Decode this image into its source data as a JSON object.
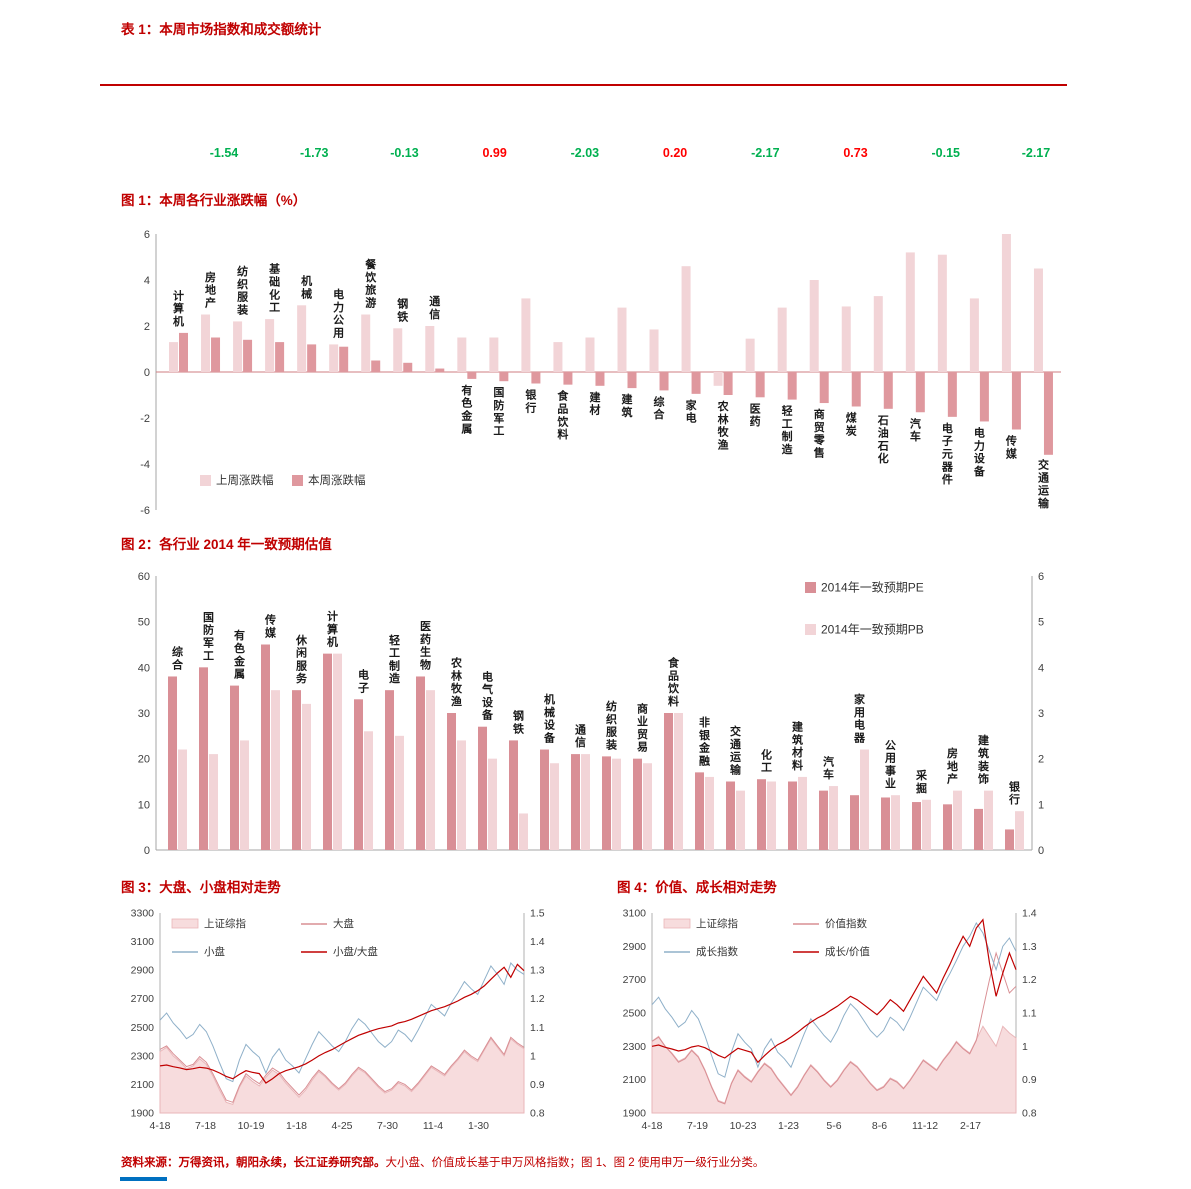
{
  "colors": {
    "title_red": "#c00000",
    "up_red": "#ff0000",
    "down_green": "#00b050",
    "axis_grey": "#a6a6a6",
    "zero_line": "#cf7d82"
  },
  "table1": {
    "title": "表 1：本周市场指数和成交额统计",
    "values": [
      {
        "text": "-1.54",
        "color": "green"
      },
      {
        "text": "-1.73",
        "color": "green"
      },
      {
        "text": "-0.13",
        "color": "green"
      },
      {
        "text": "0.99",
        "color": "red"
      },
      {
        "text": "-2.03",
        "color": "green"
      },
      {
        "text": "0.20",
        "color": "red"
      },
      {
        "text": "-2.17",
        "color": "green"
      },
      {
        "text": "0.73",
        "color": "red"
      },
      {
        "text": "-0.15",
        "color": "green"
      },
      {
        "text": "-2.17",
        "color": "green"
      }
    ]
  },
  "source_note": {
    "bold": "资料来源：万得资讯，朝阳永续，长江证券研究部。",
    "text": "大小盘、价值成长基于申万风格指数；图 1、图 2 使用申万一级行业分类。"
  },
  "chart_data": [
    {
      "id": "fig1",
      "type": "bar",
      "title": "图 1：本周各行业涨跌幅（%）",
      "ylim": [
        -6,
        6
      ],
      "yticks": [
        6,
        4,
        2,
        0,
        -2,
        -4,
        -6
      ],
      "grid": false,
      "legend_position": "bottom-left",
      "categories": [
        "计算机",
        "房地产",
        "纺织服装",
        "基础化工",
        "机械",
        "电力公用",
        "餐饮旅游",
        "钢铁",
        "通信",
        "有色金属",
        "国防军工",
        "银行",
        "食品饮料",
        "建材",
        "建筑",
        "综合",
        "家电",
        "农林牧渔",
        "医药",
        "轻工制造",
        "商贸零售",
        "煤炭",
        "石油石化",
        "汽车",
        "电子元器件",
        "电力设备",
        "传媒",
        "交通运输"
      ],
      "series": [
        {
          "name": "上周涨跌幅",
          "color": "#f2d4d7",
          "values": [
            1.3,
            2.5,
            2.2,
            2.3,
            2.9,
            1.2,
            2.5,
            1.9,
            2.0,
            1.5,
            1.5,
            3.2,
            1.3,
            1.5,
            2.8,
            1.85,
            4.6,
            -0.6,
            1.45,
            2.8,
            4.0,
            2.85,
            3.3,
            5.2,
            5.1,
            3.2,
            6.0,
            4.5
          ]
        },
        {
          "name": "本周涨跌幅",
          "color": "#df989e",
          "values": [
            1.7,
            1.5,
            1.4,
            1.3,
            1.2,
            1.1,
            0.5,
            0.4,
            0.15,
            -0.3,
            -0.4,
            -0.5,
            -0.55,
            -0.6,
            -0.7,
            -0.8,
            -0.95,
            -1.0,
            -1.1,
            -1.2,
            -1.35,
            -1.5,
            -1.6,
            -1.75,
            -1.95,
            -2.15,
            -2.5,
            -3.6
          ]
        }
      ]
    },
    {
      "id": "fig2",
      "type": "bar",
      "title": "图 2：各行业 2014 年一致预期估值",
      "ylim_left": [
        0,
        60
      ],
      "ytick_step_left": 10,
      "ylim_right": [
        0,
        6
      ],
      "ytick_step_right": 1,
      "legend_position": "top-right",
      "categories": [
        "综合",
        "国防军工",
        "有色金属",
        "传媒",
        "休闲服务",
        "计算机",
        "电子",
        "轻工制造",
        "医药生物",
        "农林牧渔",
        "电气设备",
        "钢铁",
        "机械设备",
        "通信",
        "纺织服装",
        "商业贸易",
        "食品饮料",
        "非银金融",
        "交通运输",
        "化工",
        "建筑材料",
        "汽车",
        "家用电器",
        "公用事业",
        "采掘",
        "房地产",
        "建筑装饰",
        "银行"
      ],
      "series": [
        {
          "name": "2014年一致预期PE",
          "axis": "left",
          "color": "#d98f96",
          "values": [
            38,
            40,
            36,
            45,
            35,
            43,
            33,
            35,
            38,
            30,
            27,
            24,
            22,
            21,
            20.5,
            20,
            30,
            17,
            15,
            15.5,
            15,
            13,
            12,
            11.5,
            10.5,
            10,
            9,
            4.5
          ]
        },
        {
          "name": "2014年一致预期PB",
          "axis": "right",
          "color": "#f2d4d7",
          "values": [
            2.2,
            2.1,
            2.4,
            3.5,
            3.2,
            4.3,
            2.6,
            2.5,
            3.5,
            2.4,
            2.0,
            0.8,
            1.9,
            2.1,
            2.0,
            1.9,
            3.0,
            1.6,
            1.3,
            1.5,
            1.6,
            1.4,
            2.2,
            1.2,
            1.1,
            1.3,
            1.3,
            0.85
          ]
        }
      ]
    },
    {
      "id": "fig3",
      "type": "line",
      "title": "图 3：大盘、小盘相对走势",
      "x_labels": [
        "4-18",
        "7-18",
        "10-19",
        "1-18",
        "4-25",
        "7-30",
        "11-4",
        "1-30"
      ],
      "ylim_left": [
        1900,
        3300
      ],
      "ytick_step_left": 200,
      "ylim_right": [
        0.8,
        1.5
      ],
      "ytick_step_right": 0.1,
      "legend_position": "top-left",
      "series": [
        {
          "name": "上证综指",
          "style": "area",
          "axis": "left",
          "fill": "#f7dcdd",
          "stroke": "#e9b6b9",
          "values": [
            2330,
            2360,
            2300,
            2260,
            2210,
            2230,
            2280,
            2240,
            2160,
            2060,
            1975,
            1960,
            2080,
            2160,
            2120,
            2090,
            2150,
            2200,
            2170,
            2110,
            2060,
            2010,
            2060,
            2130,
            2190,
            2150,
            2100,
            2060,
            2100,
            2160,
            2210,
            2180,
            2130,
            2080,
            2040,
            2060,
            2110,
            2090,
            2050,
            2100,
            2160,
            2220,
            2190,
            2160,
            2220,
            2270,
            2330,
            2290,
            2260,
            2340,
            2420,
            2360,
            2300,
            2420,
            2380,
            2350
          ]
        },
        {
          "name": "大盘",
          "style": "line",
          "axis": "left",
          "stroke": "#d98f94",
          "values": [
            2345,
            2370,
            2315,
            2270,
            2225,
            2240,
            2295,
            2255,
            2175,
            2080,
            1990,
            1975,
            2090,
            2175,
            2135,
            2105,
            2165,
            2215,
            2185,
            2125,
            2075,
            2025,
            2075,
            2145,
            2200,
            2160,
            2110,
            2070,
            2110,
            2170,
            2220,
            2190,
            2140,
            2090,
            2050,
            2070,
            2120,
            2100,
            2060,
            2110,
            2170,
            2230,
            2200,
            2170,
            2230,
            2280,
            2340,
            2300,
            2270,
            2350,
            2430,
            2370,
            2310,
            2430,
            2390,
            2360
          ]
        },
        {
          "name": "小盘",
          "style": "line",
          "axis": "left",
          "stroke": "#8fb0c9",
          "values": [
            2550,
            2600,
            2530,
            2480,
            2420,
            2450,
            2520,
            2470,
            2370,
            2250,
            2140,
            2120,
            2270,
            2380,
            2330,
            2290,
            2180,
            2290,
            2350,
            2270,
            2230,
            2180,
            2280,
            2380,
            2470,
            2420,
            2370,
            2330,
            2400,
            2490,
            2560,
            2520,
            2460,
            2400,
            2360,
            2400,
            2480,
            2450,
            2400,
            2480,
            2570,
            2660,
            2620,
            2580,
            2670,
            2740,
            2820,
            2770,
            2730,
            2830,
            2930,
            2870,
            2800,
            2950,
            2900,
            2870
          ]
        },
        {
          "name": "小盘/大盘",
          "style": "line",
          "axis": "right",
          "stroke": "#c00000",
          "values": [
            0.965,
            0.968,
            0.962,
            0.958,
            0.952,
            0.955,
            0.96,
            0.957,
            0.95,
            0.94,
            0.928,
            0.92,
            0.935,
            0.948,
            0.942,
            0.938,
            0.905,
            0.92,
            0.938,
            0.948,
            0.955,
            0.962,
            0.972,
            0.985,
            1.0,
            1.012,
            1.022,
            1.035,
            1.048,
            1.06,
            1.072,
            1.08,
            1.088,
            1.095,
            1.1,
            1.105,
            1.115,
            1.12,
            1.128,
            1.138,
            1.148,
            1.158,
            1.165,
            1.172,
            1.182,
            1.192,
            1.205,
            1.215,
            1.228,
            1.245,
            1.268,
            1.29,
            1.31,
            1.275,
            1.32,
            1.298
          ]
        }
      ]
    },
    {
      "id": "fig4",
      "type": "line",
      "title": "图 4：价值、成长相对走势",
      "x_labels": [
        "4-18",
        "7-19",
        "10-23",
        "1-23",
        "5-6",
        "8-6",
        "11-12",
        "2-17"
      ],
      "ylim_left": [
        1900,
        3100
      ],
      "ytick_step_left": 200,
      "ylim_right": [
        0.8,
        1.4
      ],
      "ytick_step_right": 0.1,
      "legend_position": "top-left",
      "series": [
        {
          "name": "上证综指",
          "style": "area",
          "axis": "left",
          "fill": "#f7dcdd",
          "stroke": "#e9b6b9",
          "values": [
            2330,
            2360,
            2300,
            2260,
            2210,
            2230,
            2280,
            2240,
            2160,
            2060,
            1975,
            1960,
            2080,
            2160,
            2120,
            2090,
            2150,
            2200,
            2170,
            2110,
            2060,
            2010,
            2060,
            2130,
            2190,
            2150,
            2100,
            2060,
            2100,
            2160,
            2210,
            2180,
            2130,
            2080,
            2040,
            2060,
            2110,
            2090,
            2050,
            2100,
            2160,
            2220,
            2190,
            2160,
            2220,
            2270,
            2330,
            2290,
            2260,
            2340,
            2420,
            2360,
            2300,
            2420,
            2380,
            2350
          ]
        },
        {
          "name": "价值指数",
          "style": "line",
          "axis": "left",
          "stroke": "#d98f94",
          "values": [
            2330,
            2355,
            2300,
            2255,
            2205,
            2225,
            2275,
            2235,
            2155,
            2055,
            1970,
            1955,
            2075,
            2155,
            2115,
            2085,
            2145,
            2195,
            2165,
            2105,
            2055,
            2005,
            2055,
            2125,
            2185,
            2145,
            2095,
            2055,
            2095,
            2155,
            2205,
            2175,
            2125,
            2075,
            2035,
            2055,
            2105,
            2085,
            2045,
            2095,
            2155,
            2215,
            2185,
            2155,
            2215,
            2265,
            2325,
            2285,
            2255,
            2335,
            2520,
            2700,
            2860,
            2740,
            2620,
            2660
          ]
        },
        {
          "name": "成长指数",
          "style": "line",
          "axis": "left",
          "stroke": "#8fb0c9",
          "values": [
            2550,
            2595,
            2525,
            2475,
            2415,
            2445,
            2515,
            2465,
            2365,
            2245,
            2135,
            2115,
            2265,
            2375,
            2325,
            2285,
            2175,
            2285,
            2345,
            2265,
            2225,
            2175,
            2275,
            2375,
            2465,
            2415,
            2365,
            2325,
            2395,
            2485,
            2555,
            2515,
            2455,
            2395,
            2355,
            2395,
            2475,
            2445,
            2395,
            2475,
            2565,
            2655,
            2615,
            2575,
            2665,
            2735,
            2815,
            2900,
            2960,
            3040,
            2980,
            2870,
            2760,
            2900,
            2950,
            2870
          ]
        },
        {
          "name": "成长/价值",
          "style": "line",
          "axis": "right",
          "stroke": "#c00000",
          "values": [
            1.0,
            1.004,
            0.997,
            0.992,
            0.986,
            0.99,
            0.998,
            1.002,
            0.996,
            0.985,
            0.973,
            0.965,
            0.98,
            0.994,
            0.988,
            0.982,
            0.952,
            0.972,
            0.99,
            1.005,
            1.015,
            1.028,
            1.042,
            1.058,
            1.072,
            1.085,
            1.095,
            1.108,
            1.12,
            1.135,
            1.15,
            1.14,
            1.125,
            1.11,
            1.095,
            1.115,
            1.14,
            1.125,
            1.105,
            1.14,
            1.175,
            1.21,
            1.185,
            1.16,
            1.205,
            1.245,
            1.29,
            1.33,
            1.3,
            1.355,
            1.38,
            1.25,
            1.15,
            1.22,
            1.28,
            1.23
          ]
        }
      ]
    }
  ]
}
